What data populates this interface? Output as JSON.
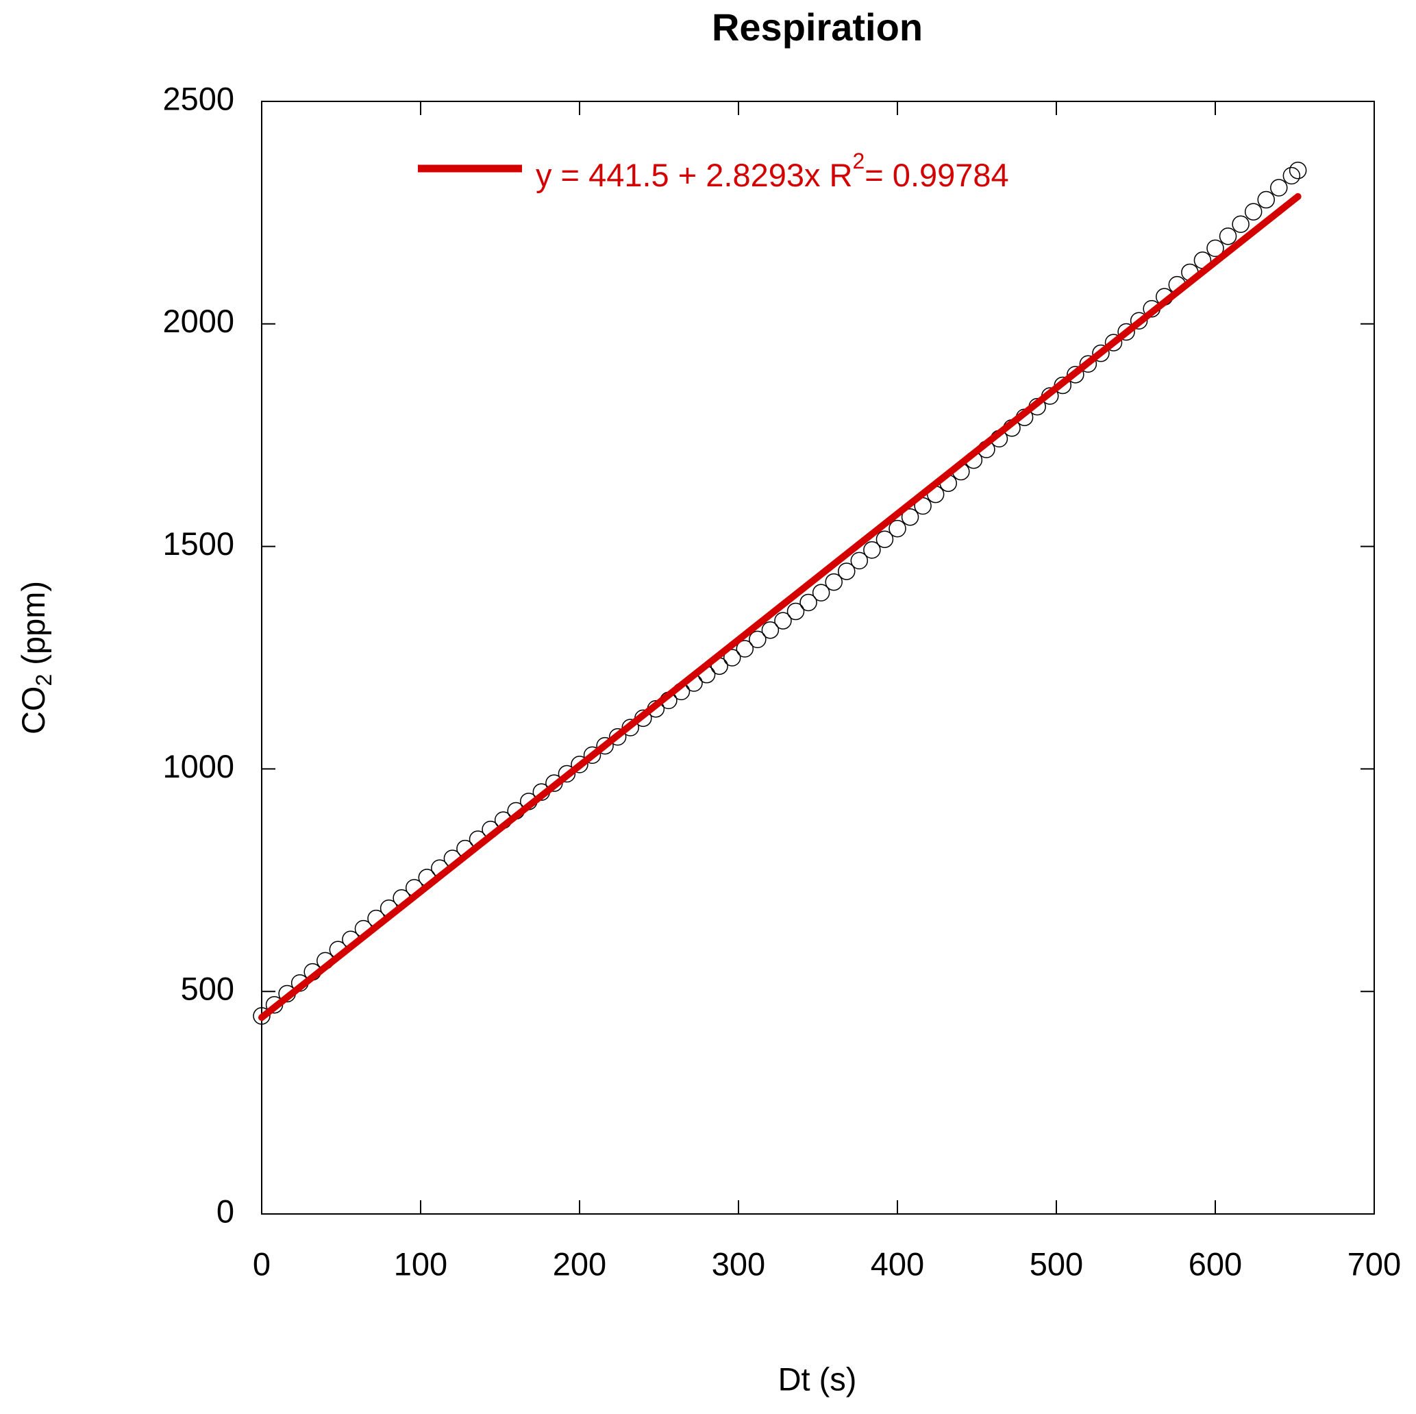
{
  "chart_data": {
    "type": "scatter",
    "title": "Respiration",
    "xlabel": "Dt (s)",
    "ylabel_parts": [
      "CO",
      "2",
      " (ppm)"
    ],
    "x": [
      0,
      8,
      16,
      24,
      32,
      40,
      48,
      56,
      64,
      72,
      80,
      88,
      96,
      104,
      112,
      120,
      128,
      136,
      144,
      152,
      160,
      168,
      176,
      184,
      192,
      200,
      208,
      216,
      224,
      232,
      240,
      248,
      256,
      264,
      272,
      280,
      288,
      296,
      304,
      312,
      320,
      328,
      336,
      344,
      352,
      360,
      368,
      376,
      384,
      392,
      400,
      408,
      416,
      424,
      432,
      440,
      448,
      456,
      464,
      472,
      480,
      488,
      496,
      504,
      512,
      520,
      528,
      536,
      544,
      552,
      560,
      568,
      576,
      584,
      592,
      600,
      608,
      616,
      624,
      632,
      640,
      648,
      652
    ],
    "series": [
      {
        "color": "#000000",
        "values": [
          445,
          470,
          495,
          519,
          544,
          569,
          594,
          617,
          641,
          664,
          687,
          710,
          733,
          756,
          777,
          799,
          821,
          842,
          864,
          885,
          906,
          927,
          948,
          968,
          989,
          1010,
          1031,
          1052,
          1072,
          1093,
          1114,
          1135,
          1154,
          1174,
          1193,
          1212,
          1231,
          1250,
          1270,
          1291,
          1312,
          1333,
          1354,
          1374,
          1396,
          1420,
          1444,
          1468,
          1492,
          1516,
          1540,
          1566,
          1591,
          1617,
          1642,
          1668,
          1694,
          1718,
          1742,
          1766,
          1790,
          1814,
          1838,
          1862,
          1886,
          1910,
          1934,
          1958,
          1982,
          2007,
          2034,
          2061,
          2088,
          2116,
          2143,
          2170,
          2197,
          2224,
          2252,
          2279,
          2306,
          2333,
          2345
        ]
      }
    ],
    "fit": {
      "color": "#d40000",
      "x": [
        0,
        652
      ],
      "values": [
        441.5,
        2286.2
      ],
      "label_parts": [
        "y = 441.5 + 2.8293x   R",
        "2",
        "= 0.99784"
      ]
    },
    "xlim": [
      0,
      700
    ],
    "xticks": [
      0,
      100,
      200,
      300,
      400,
      500,
      600,
      700
    ],
    "ylim": [
      0,
      2500
    ],
    "yticks": [
      0,
      500,
      1000,
      1500,
      2000,
      2500
    ]
  }
}
